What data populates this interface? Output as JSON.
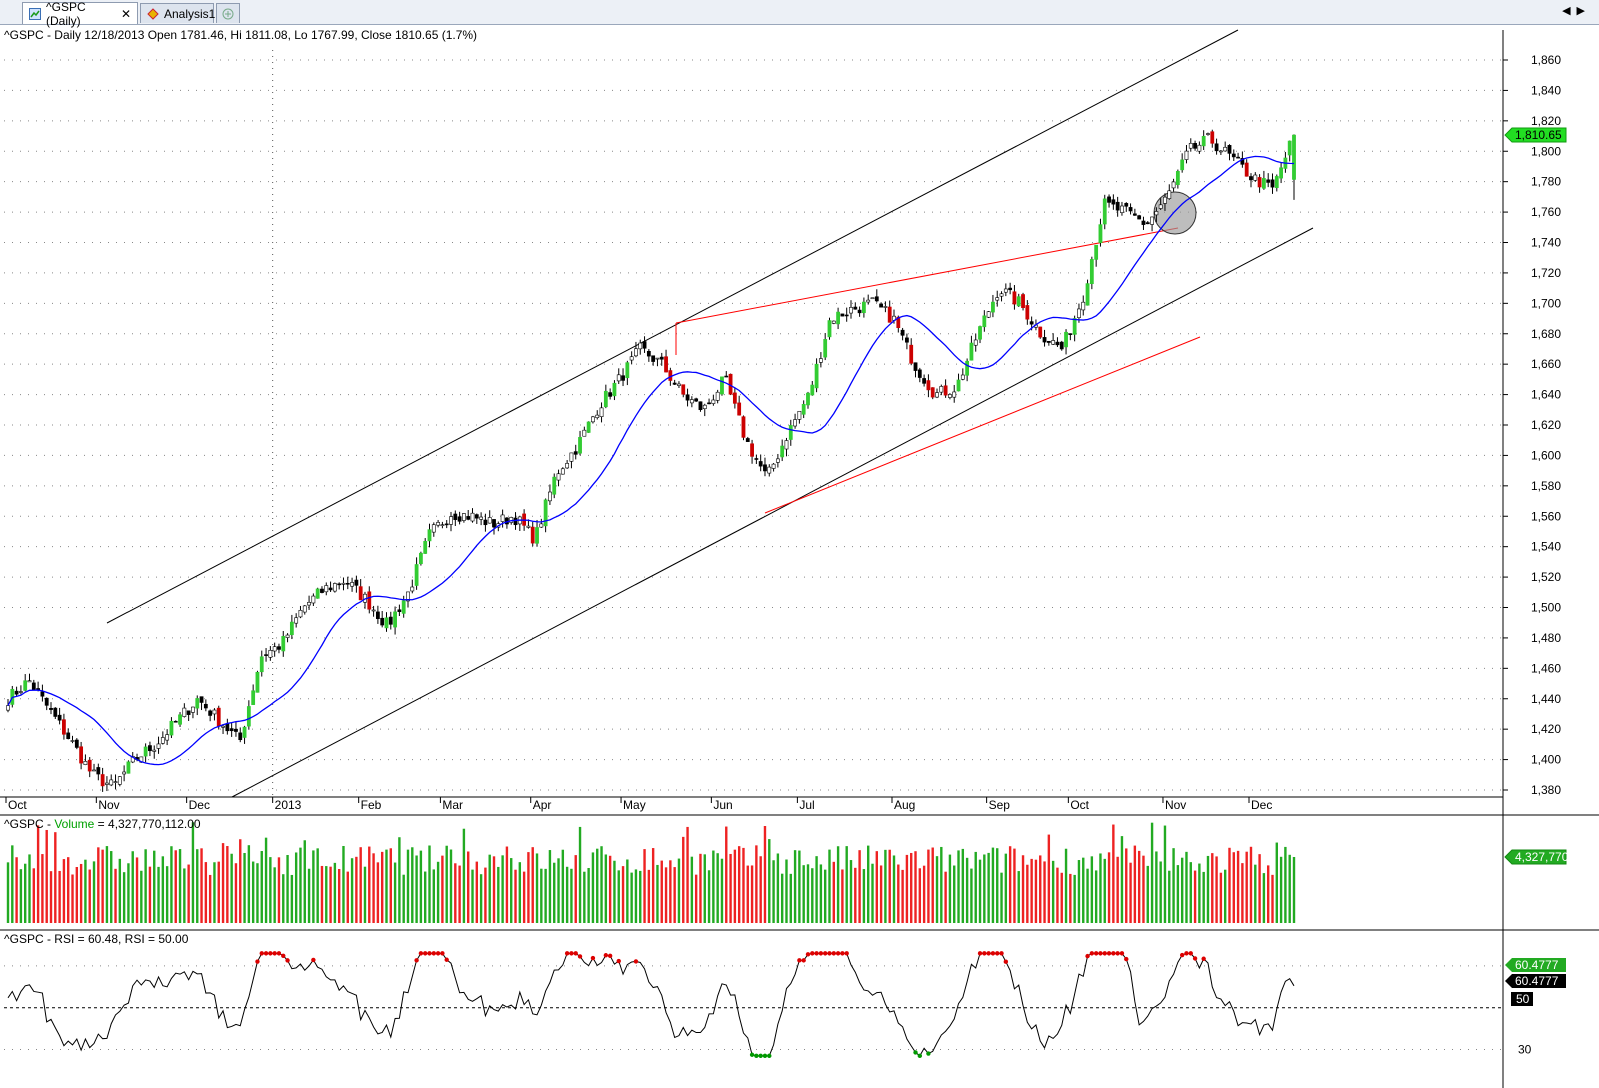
{
  "tabs": [
    {
      "label": "^GSPC (Daily)",
      "close": "✕",
      "icon": "chart-icon"
    },
    {
      "label": "Analysis1",
      "icon": "analysis-icon"
    },
    {
      "label": "",
      "icon": "new-tab-icon"
    }
  ],
  "nav": {
    "left": "◀",
    "right": "▶"
  },
  "price_pane": {
    "title": "^GSPC - Daily 12/18/2013 Open 1781.46, Hi 1811.08, Lo 1767.99, Close 1810.65 (1.7%)",
    "last_label": "1,810.65",
    "colors": {
      "up": "#33cc33",
      "down": "#cc0000",
      "neutral": "#000000",
      "ma": "#0000ff",
      "channel": "#000000",
      "wedge": "#ff0000",
      "badge": "#22dd22"
    }
  },
  "volume_pane": {
    "title_prefix": "^GSPC - ",
    "title_series": "Volume",
    "title_suffix": " = 4,327,770,112.00",
    "last_label": "4,327,770"
  },
  "rsi_pane": {
    "title": "^GSPC - RSI = 60.48, RSI = 50.00",
    "label1": "60.4777",
    "label2": "60.4777",
    "label3": "50",
    "ticks": [
      30
    ]
  },
  "chart_data": [
    {
      "type": "candlestick",
      "title": "^GSPC - Daily 12/18/2013",
      "x_tick_labels": [
        "Oct",
        "Nov",
        "Dec",
        "2013",
        "Feb",
        "Mar",
        "Apr",
        "May",
        "Jun",
        "Jul",
        "Aug",
        "Sep",
        "Oct",
        "Nov",
        "Dec"
      ],
      "y_ticks": [
        1380,
        1400,
        1420,
        1440,
        1460,
        1480,
        1500,
        1520,
        1540,
        1560,
        1580,
        1600,
        1620,
        1640,
        1660,
        1680,
        1700,
        1720,
        1740,
        1760,
        1780,
        1800,
        1820,
        1840,
        1860
      ],
      "ylim": [
        1372,
        1873
      ],
      "grid": true,
      "last_bar": {
        "date": "12/18/2013",
        "open": 1781.46,
        "high": 1811.08,
        "low": 1767.99,
        "close": 1810.65
      },
      "anchors_close": [
        1440,
        1452,
        1432,
        1412,
        1390,
        1382,
        1400,
        1410,
        1425,
        1440,
        1426,
        1412,
        1468,
        1476,
        1500,
        1512,
        1518,
        1505,
        1488,
        1510,
        1548,
        1562,
        1560,
        1555,
        1560,
        1545,
        1588,
        1606,
        1632,
        1650,
        1670,
        1660,
        1640,
        1630,
        1650,
        1610,
        1585,
        1615,
        1640,
        1690,
        1696,
        1700,
        1690,
        1660,
        1640,
        1645,
        1680,
        1710,
        1700,
        1680,
        1670,
        1705,
        1765,
        1760,
        1752,
        1770,
        1800,
        1808,
        1796,
        1783,
        1775,
        1810.65
      ]
    },
    {
      "type": "bar",
      "title": "Volume",
      "last_value": 4327770112
    },
    {
      "type": "line",
      "title": "RSI",
      "y_ticks": [
        30
      ],
      "ylim": [
        25,
        80
      ],
      "reference": 50,
      "last_value": 60.48
    }
  ]
}
